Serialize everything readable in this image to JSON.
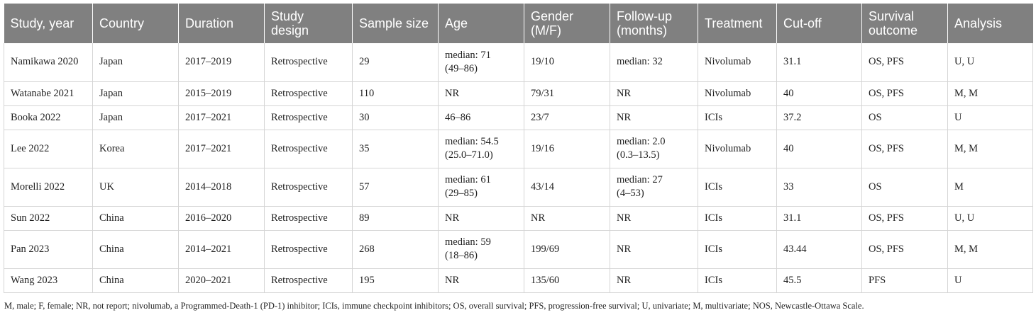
{
  "table": {
    "headers": [
      [
        "Study, year"
      ],
      [
        "Country"
      ],
      [
        "Duration"
      ],
      [
        "Study",
        "design"
      ],
      [
        "Sample size"
      ],
      [
        "Age"
      ],
      [
        "Gender",
        "(M/F)"
      ],
      [
        "Follow-up",
        "(months)"
      ],
      [
        "Treatment"
      ],
      [
        "Cut-off"
      ],
      [
        "Survival",
        "outcome"
      ],
      [
        "Analysis"
      ]
    ],
    "rows": [
      {
        "study": "Namikawa 2020",
        "country": "Japan",
        "duration": "2017–2019",
        "design": "Retrospective",
        "sample": "29",
        "age": [
          "median: 71",
          "(49–86)"
        ],
        "gender": "19/10",
        "followup": [
          "median: 32"
        ],
        "treatment": "Nivolumab",
        "cutoff": "31.1",
        "outcome": "OS, PFS",
        "analysis": "U, U"
      },
      {
        "study": "Watanabe 2021",
        "country": "Japan",
        "duration": "2015–2019",
        "design": "Retrospective",
        "sample": "110",
        "age": [
          "NR"
        ],
        "gender": "79/31",
        "followup": [
          "NR"
        ],
        "treatment": "Nivolumab",
        "cutoff": "40",
        "outcome": "OS, PFS",
        "analysis": "M, M"
      },
      {
        "study": "Booka 2022",
        "country": "Japan",
        "duration": "2017–2021",
        "design": "Retrospective",
        "sample": "30",
        "age": [
          "46–86"
        ],
        "gender": "23/7",
        "followup": [
          "NR"
        ],
        "treatment": "ICIs",
        "cutoff": "37.2",
        "outcome": "OS",
        "analysis": "U"
      },
      {
        "study": "Lee 2022",
        "country": "Korea",
        "duration": "2017–2021",
        "design": "Retrospective",
        "sample": "35",
        "age": [
          "median: 54.5",
          "(25.0–71.0)"
        ],
        "gender": "19/16",
        "followup": [
          "median: 2.0",
          "(0.3–13.5)"
        ],
        "treatment": "Nivolumab",
        "cutoff": "40",
        "outcome": "OS, PFS",
        "analysis": "M, M"
      },
      {
        "study": "Morelli 2022",
        "country": "UK",
        "duration": "2014–2018",
        "design": "Retrospective",
        "sample": "57",
        "age": [
          "median: 61",
          "(29–85)"
        ],
        "gender": "43/14",
        "followup": [
          "median: 27",
          "(4–53)"
        ],
        "treatment": "ICIs",
        "cutoff": "33",
        "outcome": "OS",
        "analysis": "M"
      },
      {
        "study": "Sun 2022",
        "country": "China",
        "duration": "2016–2020",
        "design": "Retrospective",
        "sample": "89",
        "age": [
          "NR"
        ],
        "gender": "NR",
        "followup": [
          "NR"
        ],
        "treatment": "ICIs",
        "cutoff": "31.1",
        "outcome": "OS, PFS",
        "analysis": "U, U"
      },
      {
        "study": "Pan 2023",
        "country": "China",
        "duration": "2014–2021",
        "design": "Retrospective",
        "sample": "268",
        "age": [
          "median: 59",
          "(18–86)"
        ],
        "gender": "199/69",
        "followup": [
          "NR"
        ],
        "treatment": "ICIs",
        "cutoff": "43.44",
        "outcome": "OS, PFS",
        "analysis": "M, M"
      },
      {
        "study": "Wang 2023",
        "country": "China",
        "duration": "2020–2021",
        "design": "Retrospective",
        "sample": "195",
        "age": [
          "NR"
        ],
        "gender": "135/60",
        "followup": [
          "NR"
        ],
        "treatment": "ICIs",
        "cutoff": "45.5",
        "outcome": "PFS",
        "analysis": "U"
      }
    ]
  },
  "footnote": "M, male; F, female; NR, not report; nivolumab, a Programmed-Death-1 (PD-1) inhibitor; ICIs, immune checkpoint inhibitors; OS, overall survival; PFS, progression-free survival; U, univariate; M, multivariate; NOS, Newcastle-Ottawa Scale.",
  "colors": {
    "header_bg": "#808080",
    "header_text": "#ffffff",
    "grid": "#d5d5d5"
  }
}
